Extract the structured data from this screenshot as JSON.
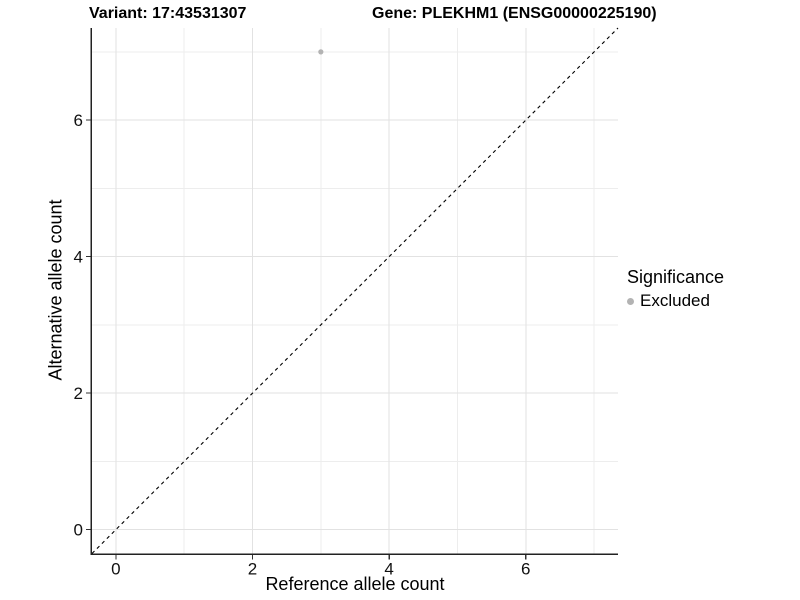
{
  "figure": {
    "background": "#ffffff"
  },
  "chart_data": {
    "type": "scatter",
    "titles": {
      "left": "Variant: 17:43531307",
      "right": "Gene: PLEKHM1 (ENSG00000225190)"
    },
    "xlabel": "Reference allele count",
    "ylabel": "Alternative allele count",
    "xlim": [
      -0.35,
      7.35
    ],
    "ylim": [
      -0.35,
      7.35
    ],
    "x_major_ticks": [
      0,
      2,
      4,
      6
    ],
    "x_minor_ticks": [
      1,
      3,
      5,
      7
    ],
    "y_major_ticks": [
      0,
      2,
      4,
      6
    ],
    "y_minor_ticks": [
      1,
      3,
      5,
      7
    ],
    "grid": "major+minor",
    "series": [
      {
        "name": "Excluded",
        "marker": "circle",
        "color": "#b3b3b3",
        "points": [
          {
            "x": 3,
            "y": 7
          }
        ]
      }
    ],
    "reference_line": {
      "slope": 1,
      "intercept": 0,
      "style": "dashed",
      "color": "#000000"
    },
    "legend": {
      "title": "Significance",
      "position": "right",
      "entries": [
        {
          "label": "Excluded",
          "color": "#b3b3b3",
          "marker": "circle"
        }
      ]
    },
    "style": {
      "grid_major_color": "#e2e2e2",
      "grid_minor_color": "#ededed",
      "axis_line_color": "#222222",
      "tick_color": "#333333",
      "tick_label_color": "#111111",
      "point_radius": 2.6
    }
  }
}
